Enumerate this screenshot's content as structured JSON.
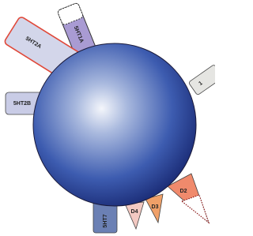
{
  "receptors": [
    {
      "label": "5HT1A"
    },
    {
      "label": "5HT2A"
    },
    {
      "label": "5HT2B"
    },
    {
      "label": "1"
    },
    {
      "label": "5HT7"
    },
    {
      "label": "D4"
    },
    {
      "label": "D3"
    },
    {
      "label": "D2"
    }
  ]
}
